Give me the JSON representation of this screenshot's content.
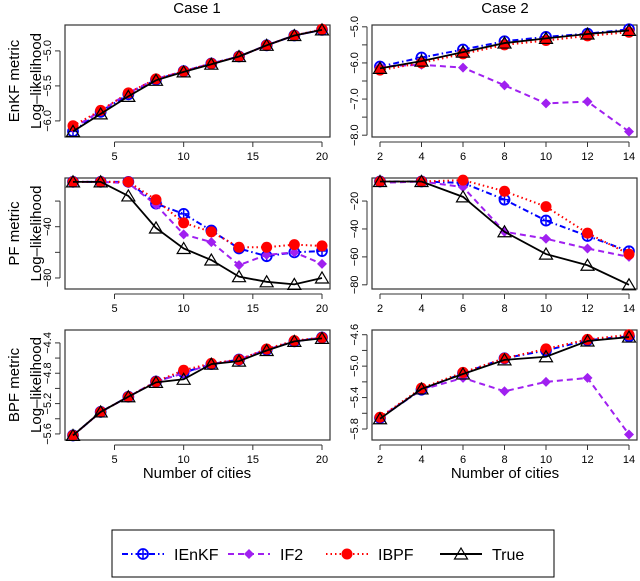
{
  "legend": {
    "placement": "bottom",
    "entries": [
      {
        "name": "IEnKF",
        "color": "#0000ff",
        "line": "dotdash",
        "marker": "circle-plus"
      },
      {
        "name": "IF2",
        "color": "#a020f0",
        "line": "dashed",
        "marker": "diamond"
      },
      {
        "name": "IBPF",
        "color": "#ff0000",
        "line": "dotted",
        "marker": "filled-circle"
      },
      {
        "name": "True",
        "color": "#000000",
        "line": "solid",
        "marker": "open-triangle"
      }
    ]
  },
  "column_titles": [
    "Case 1",
    "Case 2"
  ],
  "row_labels": [
    "EnKF metric",
    "PF metric",
    "BPF metric"
  ],
  "ylabel": "Log–likelihood",
  "xlabel": "Number of cities",
  "chart_data": [
    {
      "type": "line",
      "row": 0,
      "col": 0,
      "x": [
        2,
        4,
        6,
        8,
        10,
        12,
        14,
        16,
        18,
        20
      ],
      "xlim": [
        2,
        20
      ],
      "ylim": [
        -6.23,
        -4.63
      ],
      "xticks": [
        {
          "v": 5,
          "label": "5"
        },
        {
          "v": 10,
          "label": "10"
        },
        {
          "v": 15,
          "label": "15"
        },
        {
          "v": 20,
          "label": "20"
        }
      ],
      "yticks": [
        {
          "v": -6.0,
          "label": "-6.0"
        },
        {
          "v": -5.5,
          "label": "-5.5"
        },
        {
          "v": -5.0,
          "label": "-5.0"
        }
      ],
      "series": [
        {
          "name": "IEnKF",
          "values": [
            -6.15,
            -5.87,
            -5.62,
            -5.41,
            -5.29,
            -5.18,
            -5.08,
            -4.92,
            -4.78,
            -4.7
          ]
        },
        {
          "name": "IF2",
          "values": [
            -6.1,
            -5.86,
            -5.6,
            -5.4,
            -5.29,
            -5.18,
            -5.08,
            -4.92,
            -4.78,
            -4.7
          ]
        },
        {
          "name": "IBPF",
          "values": [
            -6.07,
            -5.85,
            -5.6,
            -5.4,
            -5.29,
            -5.18,
            -5.08,
            -4.92,
            -4.78,
            -4.69
          ]
        },
        {
          "name": "True",
          "values": [
            -6.15,
            -5.9,
            -5.65,
            -5.42,
            -5.3,
            -5.19,
            -5.08,
            -4.92,
            -4.78,
            -4.7
          ]
        }
      ]
    },
    {
      "type": "line",
      "row": 0,
      "col": 1,
      "x": [
        2,
        4,
        6,
        8,
        10,
        12,
        14
      ],
      "xlim": [
        2,
        14
      ],
      "ylim": [
        -8.05,
        -4.95
      ],
      "xticks": [
        {
          "v": 2,
          "label": "2"
        },
        {
          "v": 4,
          "label": "4"
        },
        {
          "v": 6,
          "label": "6"
        },
        {
          "v": 8,
          "label": "8"
        },
        {
          "v": 10,
          "label": "10"
        },
        {
          "v": 12,
          "label": "12"
        },
        {
          "v": 14,
          "label": "14"
        }
      ],
      "yticks": [
        {
          "v": -8.0,
          "label": "-8.0"
        },
        {
          "v": -7.5,
          "label": ""
        },
        {
          "v": -7.0,
          "label": "-7.0"
        },
        {
          "v": -6.5,
          "label": ""
        },
        {
          "v": -6.0,
          "label": "-6.0"
        },
        {
          "v": -5.5,
          "label": ""
        },
        {
          "v": -5.0,
          "label": "-5.0"
        }
      ],
      "series": [
        {
          "name": "IEnKF",
          "values": [
            -6.1,
            -5.85,
            -5.63,
            -5.4,
            -5.28,
            -5.19,
            -5.07
          ]
        },
        {
          "name": "IF2",
          "values": [
            -6.1,
            -6.05,
            -6.13,
            -6.62,
            -7.12,
            -7.07,
            -7.9
          ]
        },
        {
          "name": "IBPF",
          "values": [
            -6.2,
            -6.0,
            -5.75,
            -5.5,
            -5.38,
            -5.25,
            -5.15
          ]
        },
        {
          "name": "True",
          "values": [
            -6.15,
            -5.95,
            -5.7,
            -5.45,
            -5.32,
            -5.2,
            -5.1
          ]
        }
      ]
    },
    {
      "type": "line",
      "row": 1,
      "col": 0,
      "x": [
        2,
        4,
        6,
        8,
        10,
        12,
        14,
        16,
        18,
        20
      ],
      "xlim": [
        2,
        20
      ],
      "ylim": [
        -88.6,
        -2
      ],
      "xticks": [
        {
          "v": 5,
          "label": "5"
        },
        {
          "v": 10,
          "label": "10"
        },
        {
          "v": 15,
          "label": "15"
        },
        {
          "v": 20,
          "label": "20"
        }
      ],
      "yticks": [
        {
          "v": -80,
          "label": "-80"
        },
        {
          "v": -60,
          "label": ""
        },
        {
          "v": -40,
          "label": "-40"
        },
        {
          "v": -20,
          "label": ""
        }
      ],
      "series": [
        {
          "name": "IEnKF",
          "values": [
            -5,
            -5,
            -5,
            -22,
            -30,
            -43,
            -57,
            -63,
            -60,
            -59
          ]
        },
        {
          "name": "IF2",
          "values": [
            -5,
            -5,
            -6,
            -23,
            -46,
            -52,
            -70,
            -62,
            -60,
            -69
          ]
        },
        {
          "name": "IBPF",
          "values": [
            -5,
            -5,
            -5,
            -19,
            -37,
            -44,
            -56,
            -56,
            -54,
            -55
          ]
        },
        {
          "name": "True",
          "values": [
            -5,
            -5,
            -16,
            -41,
            -57,
            -66,
            -79,
            -83,
            -85,
            -80
          ]
        }
      ]
    },
    {
      "type": "line",
      "row": 1,
      "col": 1,
      "x": [
        2,
        4,
        6,
        8,
        10,
        12,
        14
      ],
      "xlim": [
        2,
        14
      ],
      "ylim": [
        -83,
        -3.5
      ],
      "xticks": [
        {
          "v": 2,
          "label": "2"
        },
        {
          "v": 4,
          "label": "4"
        },
        {
          "v": 6,
          "label": "6"
        },
        {
          "v": 8,
          "label": "8"
        },
        {
          "v": 10,
          "label": "10"
        },
        {
          "v": 12,
          "label": "12"
        },
        {
          "v": 14,
          "label": "14"
        }
      ],
      "yticks": [
        {
          "v": -80,
          "label": "-80"
        },
        {
          "v": -60,
          "label": "-60"
        },
        {
          "v": -40,
          "label": "-40"
        },
        {
          "v": -20,
          "label": "-20"
        }
      ],
      "series": [
        {
          "name": "IEnKF",
          "values": [
            -6,
            -6,
            -7,
            -19,
            -34,
            -45,
            -56
          ]
        },
        {
          "name": "IF2",
          "values": [
            -7,
            -6,
            -10,
            -42,
            -47,
            -54,
            -60
          ]
        },
        {
          "name": "IBPF",
          "values": [
            -6,
            -6,
            -5,
            -13,
            -24,
            -43,
            -58
          ]
        },
        {
          "name": "True",
          "values": [
            -6,
            -6,
            -17,
            -42,
            -58,
            -66,
            -80
          ]
        }
      ]
    },
    {
      "type": "line",
      "row": 2,
      "col": 0,
      "x": [
        2,
        4,
        6,
        8,
        10,
        12,
        14,
        16,
        18,
        20
      ],
      "xlim": [
        2,
        20
      ],
      "ylim": [
        -5.68,
        -4.23
      ],
      "xticks": [
        {
          "v": 5,
          "label": "5"
        },
        {
          "v": 10,
          "label": "10"
        },
        {
          "v": 15,
          "label": "15"
        },
        {
          "v": 20,
          "label": "20"
        }
      ],
      "yticks": [
        {
          "v": -5.6,
          "label": "-5.6"
        },
        {
          "v": -5.4,
          "label": ""
        },
        {
          "v": -5.2,
          "label": "-5.2"
        },
        {
          "v": -5.0,
          "label": ""
        },
        {
          "v": -4.8,
          "label": "-4.8"
        },
        {
          "v": -4.6,
          "label": ""
        },
        {
          "v": -4.4,
          "label": "-4.4"
        }
      ],
      "series": [
        {
          "name": "IEnKF",
          "values": [
            -5.62,
            -5.31,
            -5.11,
            -4.91,
            -4.79,
            -4.68,
            -4.62,
            -4.49,
            -4.38,
            -4.33
          ]
        },
        {
          "name": "IF2",
          "values": [
            -5.62,
            -5.31,
            -5.11,
            -4.91,
            -4.8,
            -4.68,
            -4.62,
            -4.49,
            -4.38,
            -4.33
          ]
        },
        {
          "name": "IBPF",
          "values": [
            -5.62,
            -5.31,
            -5.11,
            -4.91,
            -4.76,
            -4.67,
            -4.62,
            -4.48,
            -4.37,
            -4.33
          ]
        },
        {
          "name": "True",
          "values": [
            -5.62,
            -5.31,
            -5.11,
            -4.92,
            -4.88,
            -4.68,
            -4.64,
            -4.5,
            -4.38,
            -4.34
          ]
        }
      ]
    },
    {
      "type": "line",
      "row": 2,
      "col": 1,
      "x": [
        2,
        4,
        6,
        8,
        10,
        12,
        14
      ],
      "xlim": [
        2,
        14
      ],
      "ylim": [
        -5.94,
        -4.54
      ],
      "xticks": [
        {
          "v": 2,
          "label": "2"
        },
        {
          "v": 4,
          "label": "4"
        },
        {
          "v": 6,
          "label": "6"
        },
        {
          "v": 8,
          "label": "8"
        },
        {
          "v": 10,
          "label": "10"
        },
        {
          "v": 12,
          "label": "12"
        },
        {
          "v": 14,
          "label": "14"
        }
      ],
      "yticks": [
        {
          "v": -5.8,
          "label": "-5.8"
        },
        {
          "v": -5.6,
          "label": ""
        },
        {
          "v": -5.4,
          "label": "-5.4"
        },
        {
          "v": -5.2,
          "label": ""
        },
        {
          "v": -5.0,
          "label": "-5.0"
        },
        {
          "v": -4.8,
          "label": ""
        },
        {
          "v": -4.6,
          "label": "-4.6"
        }
      ],
      "series": [
        {
          "name": "IEnKF",
          "values": [
            -5.66,
            -5.3,
            -5.09,
            -4.9,
            -4.8,
            -4.67,
            -4.62
          ]
        },
        {
          "name": "IF2",
          "values": [
            -5.65,
            -5.3,
            -5.15,
            -5.32,
            -5.2,
            -5.15,
            -5.87
          ]
        },
        {
          "name": "IBPF",
          "values": [
            -5.65,
            -5.28,
            -5.08,
            -4.9,
            -4.78,
            -4.66,
            -4.6
          ]
        },
        {
          "name": "True",
          "values": [
            -5.67,
            -5.29,
            -5.1,
            -4.92,
            -4.88,
            -4.68,
            -4.63
          ]
        }
      ]
    }
  ]
}
